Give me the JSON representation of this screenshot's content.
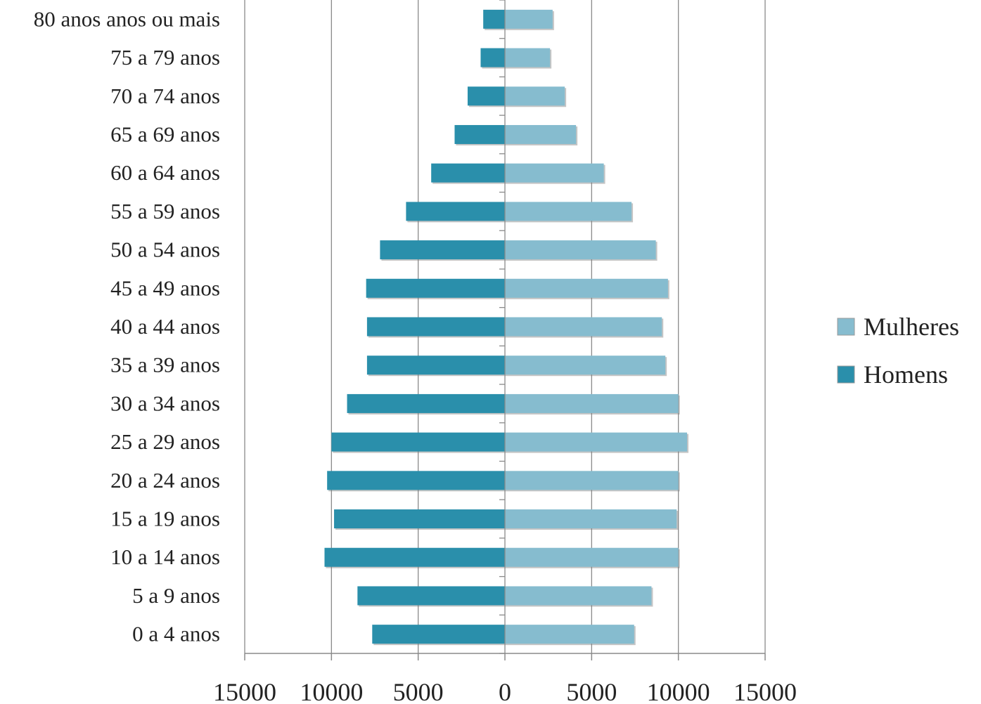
{
  "chart_data": {
    "type": "bar",
    "orientation": "horizontal",
    "layout": "population-pyramid",
    "categories": [
      "0 a 4 anos",
      "5 a 9 anos",
      "10 a 14 anos",
      "15 a 19 anos",
      "20 a 24 anos",
      "25 a 29 anos",
      "30 a 34 anos",
      "35 a 39 anos",
      "40 a 44 anos",
      "45 a 49 anos",
      "50 a 54 anos",
      "55 a 59 anos",
      "60 a 64 anos",
      "65 a 69 anos",
      "70 a 74 anos",
      "75 a 79 anos",
      "80 anos anos ou mais"
    ],
    "series": [
      {
        "name": "Homens",
        "color": "#2a8fab",
        "values": [
          -7650,
          -8500,
          -10400,
          -9850,
          -10250,
          -10000,
          -9100,
          -7950,
          -7950,
          -8000,
          -7200,
          -5700,
          -4250,
          -2900,
          -2150,
          -1400,
          -1250
        ]
      },
      {
        "name": "Mulheres",
        "color": "#86bccf",
        "values": [
          7450,
          8450,
          10000,
          9900,
          10000,
          10500,
          10000,
          9250,
          9050,
          9400,
          8700,
          7300,
          5700,
          4100,
          3450,
          2600,
          2750
        ]
      }
    ],
    "xlim": [
      -15000,
      15000
    ],
    "x_ticks": [
      -15000,
      -10000,
      -5000,
      0,
      5000,
      10000,
      15000
    ],
    "x_tick_labels": [
      "15000",
      "10000",
      "5000",
      "0",
      "5000",
      "10000",
      "15000"
    ],
    "legend_order": [
      "Mulheres",
      "Homens"
    ],
    "legend_position": "right",
    "grid": true,
    "title": "",
    "xlabel": "",
    "ylabel": ""
  }
}
